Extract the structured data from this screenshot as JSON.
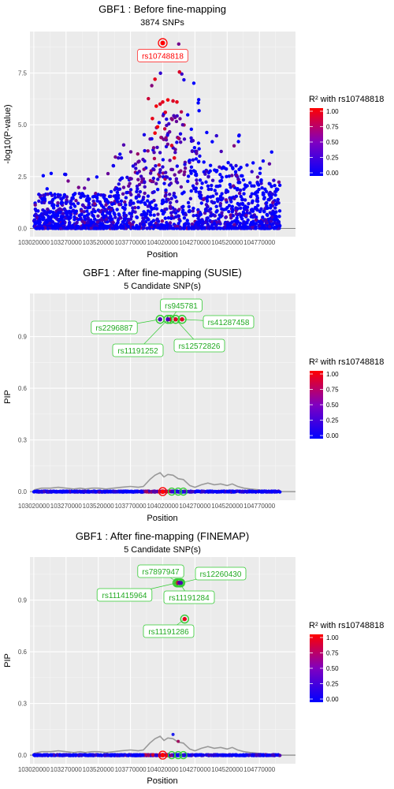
{
  "chart_data": [
    {
      "type": "scatter",
      "title": "GBF1 : Before fine-mapping",
      "subtitle": "3874 SNPs",
      "xlabel": "Position",
      "ylabel": "-log10(P-value)",
      "x_ticks": [
        "103020000",
        "103270000",
        "103520000",
        "103770000",
        "104020000",
        "104270000",
        "104520000",
        "104770000"
      ],
      "y_ticks": [
        "0.0",
        "2.5",
        "5.0",
        "7.5"
      ],
      "xlim": [
        102990000,
        105050000
      ],
      "ylim": [
        -0.4,
        9.5
      ],
      "grid": true,
      "lead_snp": {
        "label": "rs10748818",
        "x": 104020000,
        "y": 8.95
      },
      "high_r2_points": [
        {
          "x": 104000000,
          "y": 6.0
        },
        {
          "x": 104020000,
          "y": 6.1
        },
        {
          "x": 104060000,
          "y": 6.2
        },
        {
          "x": 104100000,
          "y": 6.15
        },
        {
          "x": 104130000,
          "y": 6.1
        },
        {
          "x": 103970000,
          "y": 5.9
        },
        {
          "x": 104150000,
          "y": 7.55
        },
        {
          "x": 103960000,
          "y": 7.2
        },
        {
          "x": 103980000,
          "y": 4.9
        },
        {
          "x": 104040000,
          "y": 5.6
        },
        {
          "x": 103940000,
          "y": 5.3
        },
        {
          "x": 103960000,
          "y": 4.6
        },
        {
          "x": 104090000,
          "y": 4.0
        },
        {
          "x": 104110000,
          "y": 3.4
        }
      ],
      "legend": {
        "title": "R² with rs10748818",
        "ticks": [
          "1.00",
          "0.75",
          "0.50",
          "0.25",
          "0.00"
        ],
        "placement": "right"
      },
      "colors": {
        "low": "#0000ff",
        "high": "#ff0000"
      }
    },
    {
      "type": "scatter",
      "title": "GBF1 : After fine-mapping (SUSIE)",
      "subtitle": "5 Candidate SNP(s)",
      "xlabel": "Position",
      "ylabel": "PIP",
      "x_ticks": [
        "103020000",
        "103270000",
        "103520000",
        "103770000",
        "104020000",
        "104270000",
        "104520000",
        "104770000"
      ],
      "y_ticks": [
        "0.0",
        "0.3",
        "0.6",
        "0.9"
      ],
      "xlim": [
        102990000,
        105050000
      ],
      "ylim": [
        -0.05,
        1.15
      ],
      "grid": true,
      "lead_snp": {
        "x": 104020000,
        "y": 0.0
      },
      "candidates": [
        {
          "label": "rs945781",
          "x": 104080000,
          "y": 1.0
        },
        {
          "label": "rs2296887",
          "x": 104000000,
          "y": 1.0
        },
        {
          "label": "rs41287458",
          "x": 104170000,
          "y": 1.0
        },
        {
          "label": "rs11191252",
          "x": 104060000,
          "y": 1.0
        },
        {
          "label": "rs12572826",
          "x": 104120000,
          "y": 1.0
        }
      ],
      "trend": [
        [
          103020000,
          0.01
        ],
        [
          103080000,
          0.02
        ],
        [
          103150000,
          0.02
        ],
        [
          103210000,
          0.025
        ],
        [
          103270000,
          0.02
        ],
        [
          103330000,
          0.015
        ],
        [
          103380000,
          0.02
        ],
        [
          103420000,
          0.015
        ],
        [
          103470000,
          0.02
        ],
        [
          103520000,
          0.02
        ],
        [
          103580000,
          0.015
        ],
        [
          103640000,
          0.02
        ],
        [
          103700000,
          0.025
        ],
        [
          103770000,
          0.03
        ],
        [
          103830000,
          0.025
        ],
        [
          103870000,
          0.03
        ],
        [
          103920000,
          0.07
        ],
        [
          103960000,
          0.095
        ],
        [
          104000000,
          0.11
        ],
        [
          104030000,
          0.085
        ],
        [
          104060000,
          0.1
        ],
        [
          104100000,
          0.095
        ],
        [
          104140000,
          0.075
        ],
        [
          104180000,
          0.07
        ],
        [
          104230000,
          0.035
        ],
        [
          104270000,
          0.025
        ],
        [
          104320000,
          0.04
        ],
        [
          104370000,
          0.05
        ],
        [
          104420000,
          0.04
        ],
        [
          104470000,
          0.045
        ],
        [
          104520000,
          0.035
        ],
        [
          104560000,
          0.045
        ],
        [
          104600000,
          0.03
        ],
        [
          104650000,
          0.02
        ],
        [
          104700000,
          0.015
        ],
        [
          104770000,
          0.01
        ],
        [
          104850000,
          0.005
        ],
        [
          104930000,
          0.0
        ]
      ],
      "legend": {
        "title": "R² with rs10748818",
        "ticks": [
          "1.00",
          "0.75",
          "0.50",
          "0.25",
          "0.00"
        ],
        "placement": "right"
      }
    },
    {
      "type": "scatter",
      "title": "GBF1 : After fine-mapping (FINEMAP)",
      "subtitle": "5 Candidate SNP(s)",
      "xlabel": "Position",
      "ylabel": "PIP",
      "x_ticks": [
        "103020000",
        "103270000",
        "103520000",
        "103770000",
        "104020000",
        "104270000",
        "104520000",
        "104770000"
      ],
      "y_ticks": [
        "0.0",
        "0.3",
        "0.6",
        "0.9"
      ],
      "xlim": [
        102990000,
        105050000
      ],
      "ylim": [
        -0.05,
        1.15
      ],
      "grid": true,
      "lead_snp": {
        "x": 104020000,
        "y": 0.0
      },
      "candidates": [
        {
          "label": "rs7897947",
          "x": 104140000,
          "y": 1.0
        },
        {
          "label": "rs12260430",
          "x": 104160000,
          "y": 1.0
        },
        {
          "label": "rs111415964",
          "x": 104130000,
          "y": 1.0
        },
        {
          "label": "rs11191284",
          "x": 104150000,
          "y": 1.0
        },
        {
          "label": "rs11191286",
          "x": 104190000,
          "y": 0.79
        }
      ],
      "extra_points": [
        {
          "x": 104100000,
          "y": 0.12
        },
        {
          "x": 104140000,
          "y": 0.08
        }
      ],
      "trend": [
        [
          103020000,
          0.01
        ],
        [
          103080000,
          0.02
        ],
        [
          103150000,
          0.02
        ],
        [
          103210000,
          0.025
        ],
        [
          103270000,
          0.02
        ],
        [
          103330000,
          0.015
        ],
        [
          103380000,
          0.02
        ],
        [
          103420000,
          0.015
        ],
        [
          103470000,
          0.02
        ],
        [
          103520000,
          0.02
        ],
        [
          103580000,
          0.015
        ],
        [
          103640000,
          0.02
        ],
        [
          103700000,
          0.025
        ],
        [
          103770000,
          0.03
        ],
        [
          103830000,
          0.025
        ],
        [
          103870000,
          0.03
        ],
        [
          103920000,
          0.07
        ],
        [
          103960000,
          0.095
        ],
        [
          104000000,
          0.11
        ],
        [
          104030000,
          0.085
        ],
        [
          104060000,
          0.1
        ],
        [
          104100000,
          0.095
        ],
        [
          104140000,
          0.075
        ],
        [
          104180000,
          0.07
        ],
        [
          104230000,
          0.035
        ],
        [
          104270000,
          0.025
        ],
        [
          104320000,
          0.04
        ],
        [
          104370000,
          0.05
        ],
        [
          104420000,
          0.04
        ],
        [
          104470000,
          0.045
        ],
        [
          104520000,
          0.035
        ],
        [
          104560000,
          0.045
        ],
        [
          104600000,
          0.03
        ],
        [
          104650000,
          0.02
        ],
        [
          104700000,
          0.015
        ],
        [
          104770000,
          0.01
        ],
        [
          104850000,
          0.005
        ],
        [
          104930000,
          0.0
        ]
      ],
      "legend": {
        "title": "R² with rs10748818",
        "ticks": [
          "1.00",
          "0.75",
          "0.50",
          "0.25",
          "0.00"
        ],
        "placement": "right"
      }
    }
  ]
}
